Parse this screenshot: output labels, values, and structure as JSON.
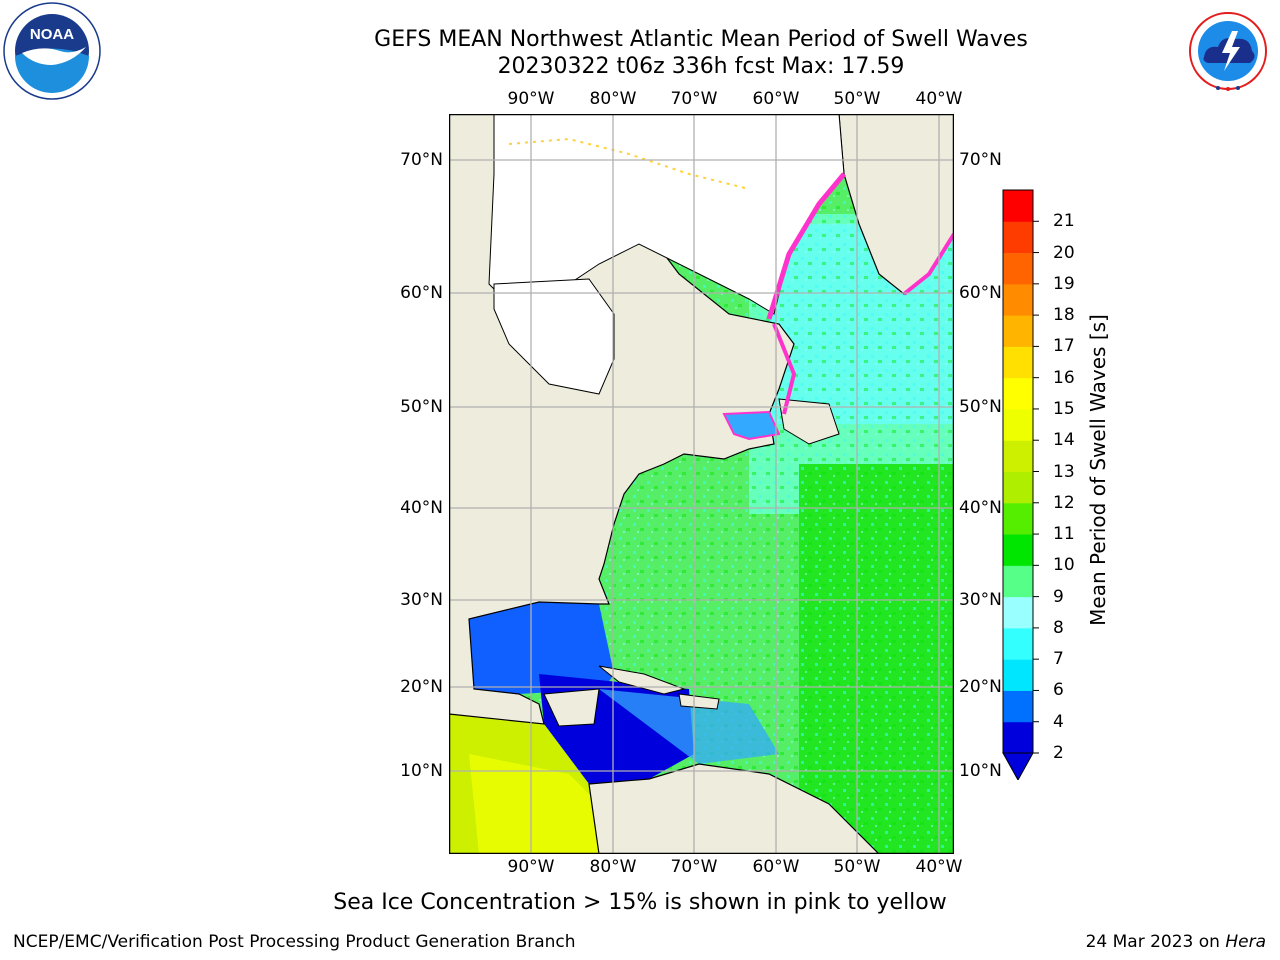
{
  "title": {
    "line1": "GEFS MEAN Northwest Atlantic Mean Period of Swell Waves",
    "line2": "20230322 t06z 336h fcst   Max: 17.59"
  },
  "map": {
    "lon_labels": [
      "90°W",
      "80°W",
      "70°W",
      "60°W",
      "50°W",
      "40°W"
    ],
    "lat_labels": [
      "70°N",
      "60°N",
      "50°N",
      "40°N",
      "30°N",
      "20°N",
      "10°N"
    ],
    "colors": {
      "land": "#eeecdc",
      "coast": "#000000",
      "grid": "#b0b0b0",
      "ice_pink": "#ff33cc",
      "ice_yellow": "#ffd23a"
    }
  },
  "colorbar": {
    "label": "Mean Period of Swell Waves [s]",
    "ticks": [
      "2",
      "4",
      "6",
      "7",
      "8",
      "9",
      "10",
      "11",
      "12",
      "13",
      "14",
      "15",
      "16",
      "17",
      "18",
      "19",
      "20",
      "21"
    ],
    "colors": [
      "#0000dd",
      "#0070ff",
      "#00e6ff",
      "#33ffff",
      "#99ffff",
      "#55ff88",
      "#00e600",
      "#55ee00",
      "#b0ee00",
      "#ccf000",
      "#eeff00",
      "#ffff00",
      "#ffe000",
      "#ffb400",
      "#ff8c00",
      "#ff6400",
      "#ff3c00",
      "#ff0000"
    ]
  },
  "notes": {
    "ice": "Sea Ice Concentration > 15% is shown in pink to yellow"
  },
  "footer": {
    "left": "NCEP/EMC/Verification Post Processing Product Generation Branch",
    "date": "24 Mar 2023 on",
    "machine": "Hera"
  },
  "logos": {
    "noaa_text": "NOAA",
    "nws_text": "NATIONAL WEATHER SERVICE"
  }
}
